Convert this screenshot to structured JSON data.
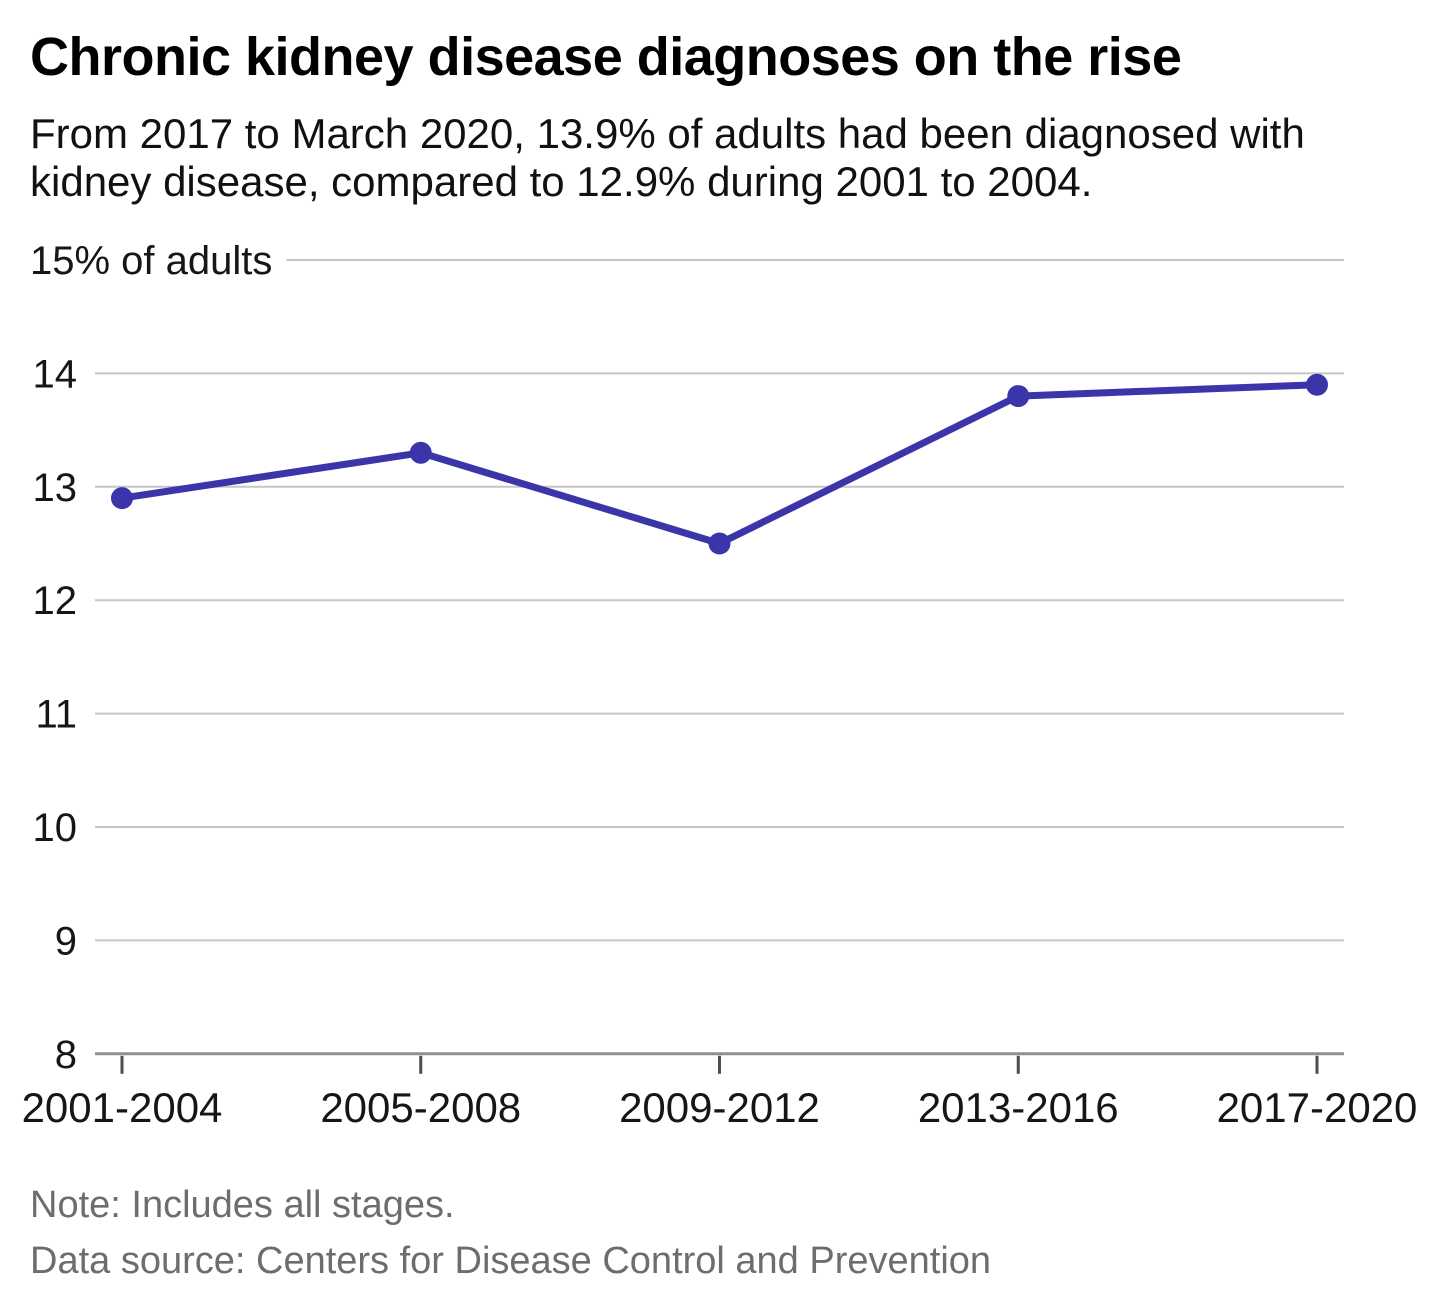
{
  "header": {
    "title": "Chronic kidney disease diagnoses on the rise",
    "subtitle": "From 2017 to March 2020, 13.9% of adults had been diagnosed with kidney disease, compared to 12.9% during 2001 to 2004."
  },
  "chart_data": {
    "type": "line",
    "title": "Chronic kidney disease diagnoses on the rise",
    "categories": [
      "2001-2004",
      "2005-2008",
      "2009-2012",
      "2013-2016",
      "2017-2020"
    ],
    "values": [
      12.9,
      13.3,
      12.5,
      13.8,
      13.9
    ],
    "xlabel": "",
    "ylabel": "% of adults",
    "ytop_label": "15% of adults",
    "ylim": [
      8,
      15
    ],
    "ytick_step": 1,
    "grid": true,
    "legend_position": "none",
    "line_color": "#3a35a8",
    "point_color": "#3a35a8",
    "grid_color": "#c6c6c6",
    "axis_color": "#8f8f8f",
    "tick_color": "#4d4d4d",
    "label_color": "#161616"
  },
  "footer": {
    "note": "Note: Includes all stages.",
    "source": "Data source: Centers for Disease Control and Prevention"
  }
}
